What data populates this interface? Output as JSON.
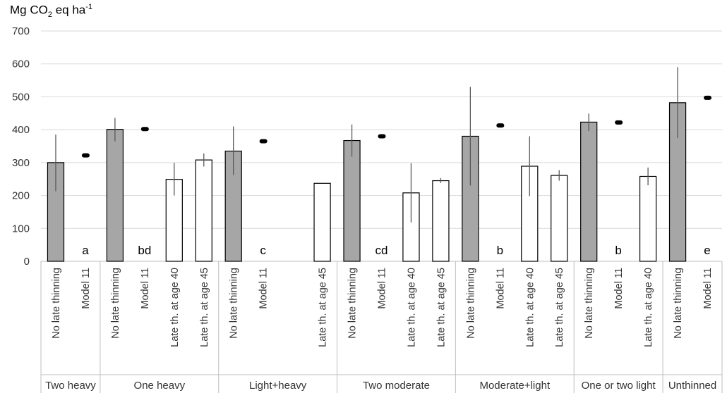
{
  "chart_data": {
    "type": "bar",
    "ylabel": {
      "base": "Mg CO",
      "sub": "2",
      "mid": " eq ha",
      "sup": "-1"
    },
    "ylim": [
      0,
      700
    ],
    "yticks": [
      0,
      100,
      200,
      300,
      400,
      500,
      600,
      700
    ],
    "grid": true,
    "groups": [
      {
        "name": "Two heavy",
        "letter": "a",
        "bars": [
          {
            "label": "No late thinning",
            "value": 300,
            "err": [
              213,
              385
            ],
            "fill": "gray"
          },
          {
            "label": "Model 11",
            "model": 322
          }
        ]
      },
      {
        "name": "One heavy",
        "letter": "bd",
        "bars": [
          {
            "label": "No late thinning",
            "value": 401,
            "err": [
              365,
              436
            ],
            "fill": "gray"
          },
          {
            "label": "Model 11",
            "model": 402
          },
          {
            "label": "Late th. at age 40",
            "value": 249,
            "err": [
              200,
              299
            ],
            "fill": "white"
          },
          {
            "label": "Late th. at age 45",
            "value": 308,
            "err": [
              288,
              328
            ],
            "fill": "white"
          }
        ]
      },
      {
        "name": "Light+heavy",
        "letter": "c",
        "bars": [
          {
            "label": "No late thinning",
            "value": 335,
            "err": [
              262,
              410
            ],
            "fill": "gray"
          },
          {
            "label": "Model 11",
            "model": 365
          },
          {
            "label": "",
            "value": null
          },
          {
            "label": "Late th. at age 45",
            "value": 237,
            "err": null,
            "fill": "white"
          }
        ]
      },
      {
        "name": "Two moderate",
        "letter": "cd",
        "bars": [
          {
            "label": "No late thinning",
            "value": 367,
            "err": [
              318,
              416
            ],
            "fill": "gray"
          },
          {
            "label": "Model 11",
            "model": 380
          },
          {
            "label": "Late th. at age 40",
            "value": 208,
            "err": [
              118,
              298
            ],
            "fill": "white"
          },
          {
            "label": "Late th. at age 45",
            "value": 245,
            "err": [
              238,
              253
            ],
            "fill": "white"
          }
        ]
      },
      {
        "name": "Moderate+light",
        "letter": "b",
        "bars": [
          {
            "label": "No late thinning",
            "value": 380,
            "err": [
              230,
              530
            ],
            "fill": "gray"
          },
          {
            "label": "Model 11",
            "model": 413
          },
          {
            "label": "Late th. at age 40",
            "value": 289,
            "err": [
              198,
              380
            ],
            "fill": "white"
          },
          {
            "label": "Late th. at age 45",
            "value": 261,
            "err": [
              245,
              277
            ],
            "fill": "white"
          }
        ]
      },
      {
        "name": "One or two light",
        "letter": "b",
        "bars": [
          {
            "label": "No late thinning",
            "value": 423,
            "err": [
              396,
              449
            ],
            "fill": "gray"
          },
          {
            "label": "Model 11",
            "model": 422
          },
          {
            "label": "Late th. at age 40",
            "value": 258,
            "err": [
              231,
              285
            ],
            "fill": "white"
          }
        ]
      },
      {
        "name": "Unthinned",
        "letter": "e",
        "bars": [
          {
            "label": "No late thinning",
            "value": 482,
            "err": [
              375,
              590
            ],
            "fill": "gray"
          },
          {
            "label": "Model 11",
            "model": 497
          }
        ]
      }
    ]
  },
  "colors": {
    "gray_bar": "#a6a6a6",
    "white_bar": "#ffffff",
    "bar_stroke": "#000000",
    "grid": "#d9d9d9",
    "axis": "#bfbfbf",
    "err": "#595959",
    "model": "#000000"
  }
}
